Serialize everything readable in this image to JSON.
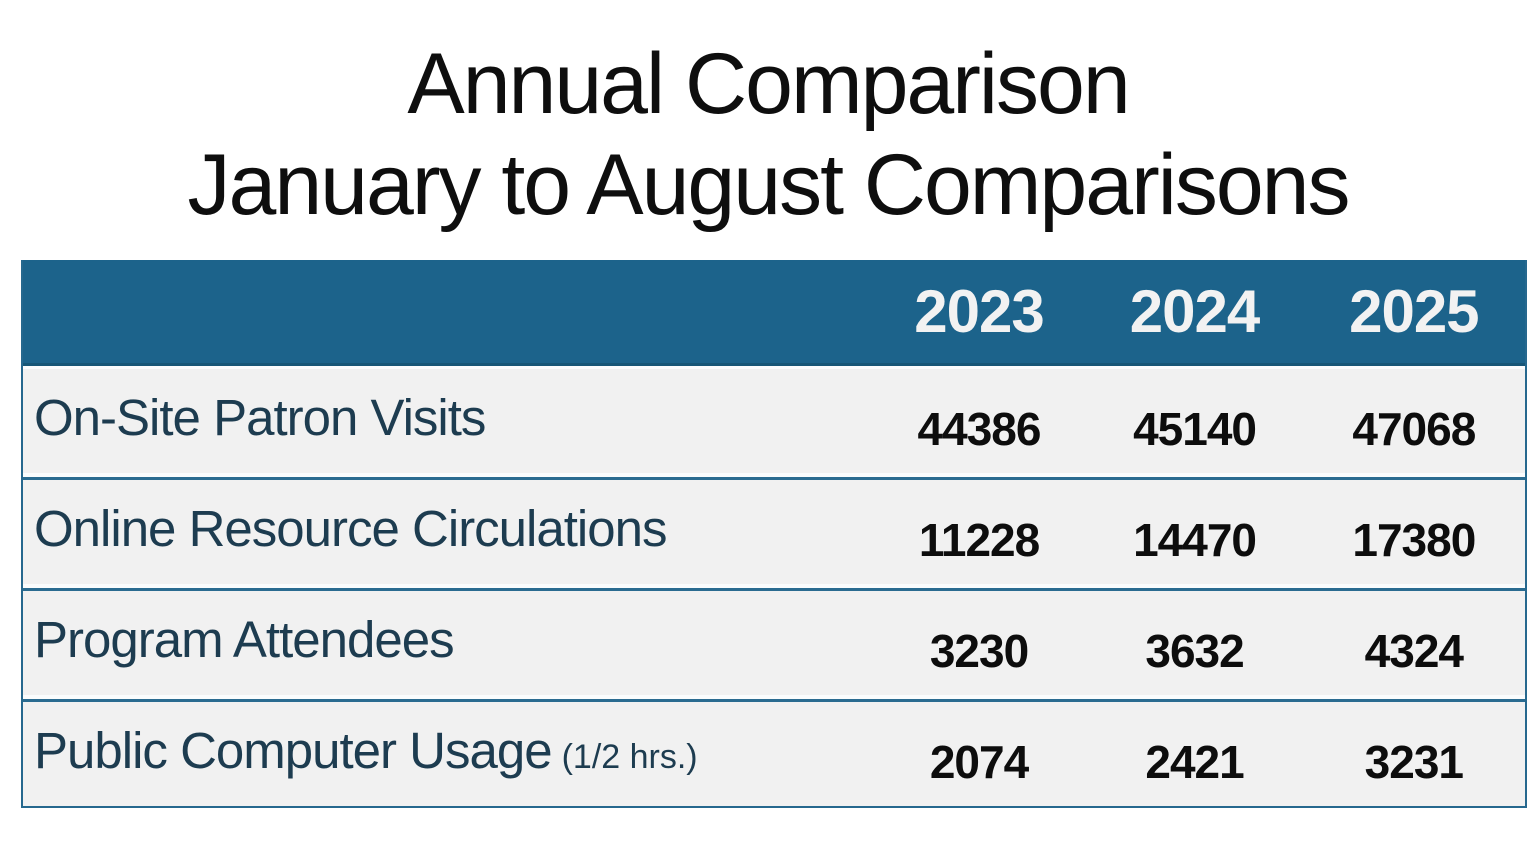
{
  "chart_data": {
    "type": "table",
    "title": "Annual Comparison",
    "subtitle": "January to August Comparisons",
    "categories": [
      "2023",
      "2024",
      "2025"
    ],
    "series": [
      {
        "name": "On-Site Patron Visits",
        "values": [
          44386,
          45140,
          47068
        ]
      },
      {
        "name": "Online Resource Circulations",
        "values": [
          11228,
          14470,
          17380
        ]
      },
      {
        "name": "Program Attendees",
        "values": [
          3230,
          3632,
          4324
        ]
      },
      {
        "name": "Public Computer Usage (1/2 hrs.)",
        "values": [
          2074,
          2421,
          3231
        ]
      }
    ]
  },
  "title": {
    "line1": "Annual Comparison",
    "line2": "January to August Comparisons"
  },
  "table": {
    "columns": [
      "2023",
      "2024",
      "2025"
    ],
    "rows": [
      {
        "label": "On-Site Patron Visits",
        "suffix": "",
        "values": [
          "44386",
          "45140",
          "47068"
        ]
      },
      {
        "label": "Online Resource Circulations",
        "suffix": "",
        "values": [
          "11228",
          "14470",
          "17380"
        ]
      },
      {
        "label": "Program Attendees",
        "suffix": "",
        "values": [
          "3230",
          "3632",
          "4324"
        ]
      },
      {
        "label": "Public Computer Usage",
        "suffix": "(1/2 hrs.)",
        "values": [
          "2074",
          "2421",
          "3231"
        ]
      }
    ]
  },
  "colors": {
    "header_bg": "#1C638B",
    "header_text": "#F2F2F2",
    "row_bg": "#F1F1F1",
    "label_text": "#1D3C50",
    "value_text": "#0D0D0D",
    "border": "#26688E",
    "title_text": "#0E0E0E",
    "background": "#FFFFFF"
  }
}
